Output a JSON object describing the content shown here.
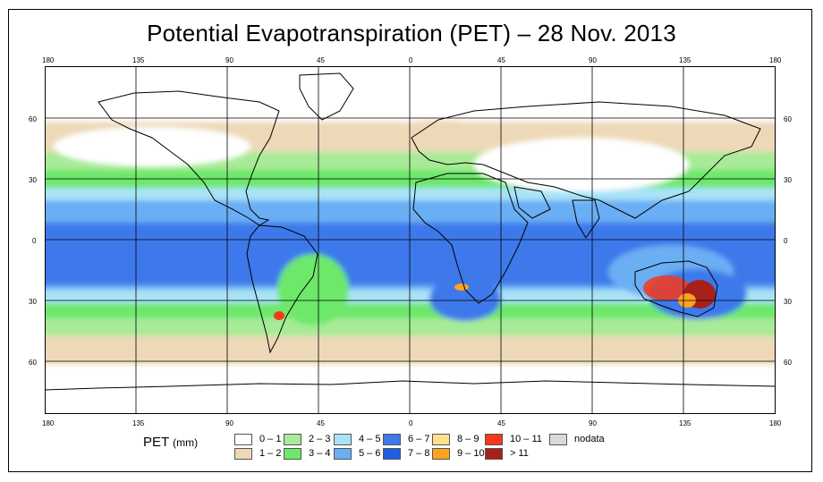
{
  "title": "Potential Evapotranspiration (PET) – 28 Nov. 2013",
  "x_ticks": [
    "180",
    "135",
    "90",
    "45",
    "0",
    "45",
    "90",
    "135",
    "180"
  ],
  "y_ticks": [
    "60",
    "30",
    "0",
    "30",
    "60"
  ],
  "legend": {
    "title": "PET",
    "unit": "(mm)",
    "items": [
      {
        "label": "0 – 1",
        "color": "#ffffff"
      },
      {
        "label": "1 – 2",
        "color": "#edd9b7"
      },
      {
        "label": "2 – 3",
        "color": "#a8ea97"
      },
      {
        "label": "3 – 4",
        "color": "#6de86a"
      },
      {
        "label": "4 – 5",
        "color": "#a9e3f7"
      },
      {
        "label": "5 – 6",
        "color": "#6aaef4"
      },
      {
        "label": "6 – 7",
        "color": "#3d79ea"
      },
      {
        "label": "7 – 8",
        "color": "#1f5fe0"
      },
      {
        "label": "8 – 9",
        "color": "#ffe18a"
      },
      {
        "label": "9 – 10",
        "color": "#ffa21f"
      },
      {
        "label": "10 – 11",
        "color": "#f7381a"
      },
      {
        "label": "> 11",
        "color": "#a8201a"
      },
      {
        "label": "nodata",
        "color": "#d9d9d9"
      }
    ]
  }
}
